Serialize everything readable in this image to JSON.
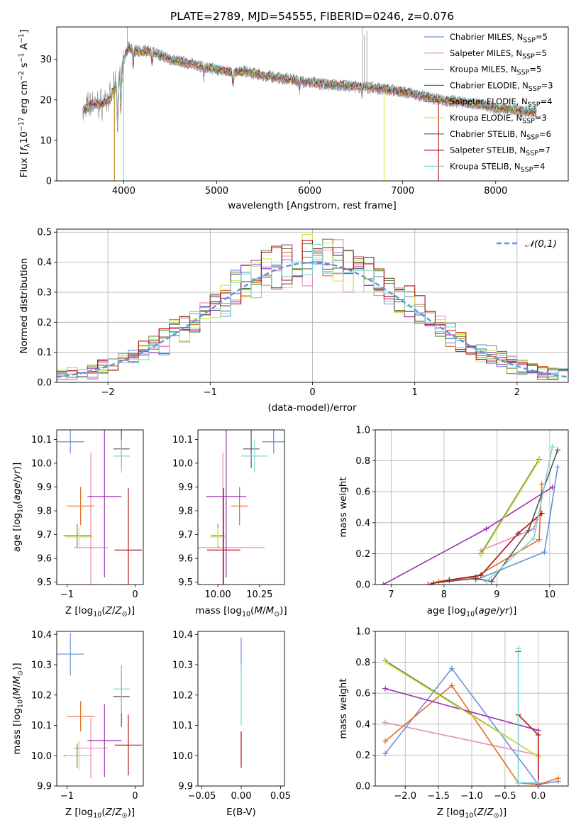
{
  "figure": {
    "title": "PLATE=2789, MJD=54555, FIBERID=0246, z=0.076"
  },
  "chart_data": [
    {
      "id": "spectrum",
      "type": "line",
      "xlabel": "wavelength [Angstrom, rest frame]",
      "ylabel": "Flux [f_λ10^-17 erg cm^-2 s^-1 A^-1]",
      "xlim": [
        3280,
        8780
      ],
      "ylim": [
        0,
        38
      ],
      "xticks": [
        4000,
        5000,
        6000,
        7000,
        8000
      ],
      "yticks": [
        0,
        10,
        20,
        30
      ],
      "grid": false,
      "legend_position": "right",
      "series": [
        {
          "name": "Chabrier MILES, N_SSP=5",
          "color": "#6a8fd8"
        },
        {
          "name": "Salpeter MILES, N_SSP=5",
          "color": "#e38bbf"
        },
        {
          "name": "Kroupa MILES, N_SSP=5",
          "color": "#b8860b"
        },
        {
          "name": "Chabrier ELODIE, N_SSP=3",
          "color": "#5f8a3a"
        },
        {
          "name": "Salpeter ELODIE, N_SSP=4",
          "color": "#9c32b0"
        },
        {
          "name": "Kroupa ELODIE, N_SSP=3",
          "color": "#d4e84a"
        },
        {
          "name": "Chabrier STELIB, N_SSP=6",
          "color": "#555555"
        },
        {
          "name": "Salpeter STELIB, N_SSP=7",
          "color": "#b01010"
        },
        {
          "name": "Kroupa STELIB, N_SSP=4",
          "color": "#7fd6d6"
        }
      ],
      "data_color": "#808080",
      "continuum_points": [
        [
          3550,
          17
        ],
        [
          3650,
          19
        ],
        [
          3750,
          19
        ],
        [
          3850,
          20
        ],
        [
          3950,
          26
        ],
        [
          4000,
          30
        ],
        [
          4050,
          33
        ],
        [
          4150,
          32
        ],
        [
          4300,
          32
        ],
        [
          4400,
          31
        ],
        [
          4500,
          30
        ],
        [
          4700,
          29
        ],
        [
          4900,
          28
        ],
        [
          5100,
          27
        ],
        [
          5300,
          27
        ],
        [
          5500,
          26
        ],
        [
          5800,
          25
        ],
        [
          6100,
          24
        ],
        [
          6400,
          23.5
        ],
        [
          6700,
          23
        ],
        [
          7000,
          22
        ],
        [
          7200,
          21
        ],
        [
          7400,
          20
        ],
        [
          7600,
          19.5
        ],
        [
          7800,
          19
        ],
        [
          8000,
          18
        ],
        [
          8200,
          17.5
        ],
        [
          8400,
          17
        ]
      ]
    },
    {
      "id": "residuals",
      "type": "histogram",
      "xlabel": "(data-model)/error",
      "ylabel": "Normed distribution",
      "xlim": [
        -2.5,
        2.5
      ],
      "ylim": [
        0,
        0.51
      ],
      "xticks": [
        -2,
        -1,
        0,
        1,
        2
      ],
      "yticks": [
        0.0,
        0.1,
        0.2,
        0.3,
        0.4,
        0.5
      ],
      "grid": true,
      "legend_position": "top-right",
      "reference_curve": {
        "label": "𝒩(0,1)",
        "color": "#5a9ad8",
        "style": "dashed"
      },
      "bin_width": 0.1
    },
    {
      "id": "age_vs_Z",
      "type": "errorbar",
      "xlabel": "Z [log10(Z/Z⊙)]",
      "ylabel": "age [log10(age/yr)]",
      "xlim": [
        -1.15,
        0.12
      ],
      "ylim": [
        9.49,
        10.14
      ],
      "xticks": [
        -1,
        0
      ],
      "yticks": [
        9.5,
        9.6,
        9.7,
        9.8,
        9.9,
        10.0,
        10.1
      ],
      "points": [
        {
          "x": -0.95,
          "xerr": 0.2,
          "y": 10.09,
          "yerr": 0.05,
          "color": "#6a8fd8"
        },
        {
          "x": -0.65,
          "xerr": 0.25,
          "y": 9.645,
          "yerr": 0.4,
          "color": "#e38bbf"
        },
        {
          "x": -0.8,
          "xerr": 0.2,
          "y": 9.82,
          "yerr": 0.08,
          "color": "#e07020"
        },
        {
          "x": -0.85,
          "xerr": 0.2,
          "y": 9.695,
          "yerr": 0.05,
          "color": "#5f8a3a"
        },
        {
          "x": -0.45,
          "xerr": 0.25,
          "y": 9.86,
          "yerr": 0.34,
          "color": "#9c32b0"
        },
        {
          "x": -0.82,
          "xerr": 0.2,
          "y": 9.69,
          "yerr": 0.04,
          "color": "#d4e84a"
        },
        {
          "x": -0.2,
          "xerr": 0.12,
          "y": 10.06,
          "yerr": 0.08,
          "color": "#555555"
        },
        {
          "x": -0.1,
          "xerr": 0.2,
          "y": 9.635,
          "yerr": 0.26,
          "color": "#b01010"
        },
        {
          "x": -0.2,
          "xerr": 0.12,
          "y": 10.03,
          "yerr": 0.07,
          "color": "#7fd6d6"
        }
      ]
    },
    {
      "id": "age_vs_mass",
      "type": "errorbar",
      "xlabel": "mass [log10(M/M⊙)]",
      "ylabel": "",
      "xlim": [
        9.88,
        10.4
      ],
      "ylim": [
        9.49,
        10.14
      ],
      "xticks": [
        10.0,
        10.25
      ],
      "yticks": [
        9.5,
        9.6,
        9.7,
        9.8,
        9.9,
        10.0,
        10.1
      ],
      "points": [
        {
          "x": 10.335,
          "xerr": 0.07,
          "y": 10.09,
          "yerr": 0.05,
          "color": "#6a8fd8"
        },
        {
          "x": 10.03,
          "xerr": 0.25,
          "y": 9.645,
          "yerr": 0.4,
          "color": "#e38bbf"
        },
        {
          "x": 10.13,
          "xerr": 0.05,
          "y": 9.82,
          "yerr": 0.08,
          "color": "#e07020"
        },
        {
          "x": 10.0,
          "xerr": 0.04,
          "y": 9.695,
          "yerr": 0.05,
          "color": "#5f8a3a"
        },
        {
          "x": 10.05,
          "xerr": 0.12,
          "y": 9.86,
          "yerr": 0.34,
          "color": "#9c32b0"
        },
        {
          "x": 10.0,
          "xerr": 0.05,
          "y": 9.69,
          "yerr": 0.04,
          "color": "#d4e84a"
        },
        {
          "x": 10.2,
          "xerr": 0.05,
          "y": 10.06,
          "yerr": 0.08,
          "color": "#555555"
        },
        {
          "x": 10.035,
          "xerr": 0.1,
          "y": 9.635,
          "yerr": 0.26,
          "color": "#b01010"
        },
        {
          "x": 10.22,
          "xerr": 0.08,
          "y": 10.03,
          "yerr": 0.07,
          "color": "#7fd6d6"
        }
      ]
    },
    {
      "id": "weight_vs_age",
      "type": "line",
      "xlabel": "age [log10(age/yr)]",
      "ylabel": "mass weight",
      "xlim": [
        6.7,
        10.35
      ],
      "ylim": [
        0,
        1.0
      ],
      "xticks": [
        7,
        8,
        9,
        10
      ],
      "yticks": [
        0.0,
        0.2,
        0.4,
        0.6,
        0.8,
        1.0
      ],
      "grid": true,
      "series": [
        {
          "color": "#6a8fd8",
          "x": [
            8.6,
            9.9,
            10.15
          ],
          "y": [
            0.03,
            0.21,
            0.76
          ]
        },
        {
          "color": "#e38bbf",
          "x": [
            8.7,
            9.7,
            9.75
          ],
          "y": [
            0.22,
            0.36,
            0.42
          ]
        },
        {
          "color": "#e07020",
          "x": [
            7.9,
            8.6,
            9.8,
            9.85
          ],
          "y": [
            0.02,
            0.05,
            0.29,
            0.65
          ]
        },
        {
          "color": "#5f8a3a",
          "x": [
            8.7,
            9.8
          ],
          "y": [
            0.2,
            0.81
          ]
        },
        {
          "color": "#9c32b0",
          "x": [
            6.85,
            8.8,
            10.05
          ],
          "y": [
            0.0,
            0.36,
            0.63
          ]
        },
        {
          "color": "#d4e84a",
          "x": [
            8.7,
            9.8
          ],
          "y": [
            0.19,
            0.8
          ]
        },
        {
          "color": "#555555",
          "x": [
            7.8,
            8.6,
            8.9,
            9.6,
            10.15
          ],
          "y": [
            0.01,
            0.04,
            0.02,
            0.35,
            0.87
          ]
        },
        {
          "color": "#b01010",
          "x": [
            7.7,
            8.1,
            8.7,
            9.4,
            9.85
          ],
          "y": [
            0.0,
            0.03,
            0.06,
            0.33,
            0.46
          ]
        },
        {
          "color": "#7fd6d6",
          "x": [
            8.8,
            9.7,
            10.05
          ],
          "y": [
            0.02,
            0.3,
            0.89
          ]
        }
      ]
    },
    {
      "id": "mass_vs_Z",
      "type": "errorbar",
      "xlabel": "Z [log10(Z/Z⊙)]",
      "ylabel": "mass [log10(M/M⊙)]",
      "xlim": [
        -1.15,
        0.12
      ],
      "ylim": [
        9.9,
        10.41
      ],
      "xticks": [
        -1,
        0
      ],
      "yticks": [
        9.9,
        10.0,
        10.1,
        10.2,
        10.3,
        10.4
      ],
      "points": [
        {
          "x": -0.95,
          "xerr": 0.2,
          "y": 10.335,
          "yerr": 0.07,
          "color": "#6a8fd8"
        },
        {
          "x": -0.65,
          "xerr": 0.25,
          "y": 10.025,
          "yerr": 0.1,
          "color": "#e38bbf"
        },
        {
          "x": -0.8,
          "xerr": 0.2,
          "y": 10.13,
          "yerr": 0.05,
          "color": "#e07020"
        },
        {
          "x": -0.85,
          "xerr": 0.2,
          "y": 10.0,
          "yerr": 0.04,
          "color": "#5f8a3a"
        },
        {
          "x": -0.45,
          "xerr": 0.25,
          "y": 10.05,
          "yerr": 0.12,
          "color": "#9c32b0"
        },
        {
          "x": -0.82,
          "xerr": 0.2,
          "y": 10.0,
          "yerr": 0.05,
          "color": "#d4e84a"
        },
        {
          "x": -0.2,
          "xerr": 0.12,
          "y": 10.195,
          "yerr": 0.1,
          "color": "#555555"
        },
        {
          "x": -0.1,
          "xerr": 0.2,
          "y": 10.035,
          "yerr": 0.1,
          "color": "#b01010"
        },
        {
          "x": -0.2,
          "xerr": 0.12,
          "y": 10.22,
          "yerr": 0.08,
          "color": "#7fd6d6"
        }
      ]
    },
    {
      "id": "mass_vs_EBV",
      "type": "errorbar",
      "xlabel": "E(B-V)",
      "ylabel": "",
      "xlim": [
        -0.055,
        0.055
      ],
      "ylim": [
        9.9,
        10.41
      ],
      "xticks": [
        -0.05,
        0.0,
        0.05
      ],
      "yticks": [
        9.9,
        10.0,
        10.1,
        10.2,
        10.3,
        10.4
      ],
      "points": [
        {
          "x": 0.0,
          "y": 10.33,
          "yerr": 0.06,
          "color": "#6a8fd8"
        },
        {
          "x": 0.0,
          "y": 10.2,
          "yerr": 0.1,
          "color": "#7fd6d6"
        },
        {
          "x": 0.0,
          "y": 10.02,
          "yerr": 0.06,
          "color": "#b01010"
        }
      ]
    },
    {
      "id": "weight_vs_Z",
      "type": "line",
      "xlabel": "Z [log10(Z/Z⊙)]",
      "ylabel": "mass weight",
      "xlim": [
        -2.45,
        0.45
      ],
      "ylim": [
        0,
        1.0
      ],
      "xticks": [
        -2.0,
        -1.5,
        -1.0,
        -0.5,
        0.0
      ],
      "yticks": [
        0.0,
        0.2,
        0.4,
        0.6,
        0.8,
        1.0
      ],
      "grid": true,
      "series": [
        {
          "color": "#6a8fd8",
          "x": [
            -2.3,
            -1.3,
            0.0,
            0.3
          ],
          "y": [
            0.21,
            0.76,
            0.01,
            0.03
          ]
        },
        {
          "color": "#e38bbf",
          "x": [
            -2.3,
            0.0
          ],
          "y": [
            0.41,
            0.2
          ]
        },
        {
          "color": "#e07020",
          "x": [
            -2.3,
            -1.3,
            -0.3,
            0.0,
            0.3
          ],
          "y": [
            0.29,
            0.65,
            0.02,
            0.01,
            0.05
          ]
        },
        {
          "color": "#5f8a3a",
          "x": [
            -2.3,
            0.0
          ],
          "y": [
            0.81,
            0.19
          ]
        },
        {
          "color": "#9c32b0",
          "x": [
            -2.3,
            0.0
          ],
          "y": [
            0.63,
            0.36
          ]
        },
        {
          "color": "#d4e84a",
          "x": [
            -2.3,
            0.0
          ],
          "y": [
            0.8,
            0.19
          ]
        },
        {
          "color": "#555555",
          "x": [
            -0.3,
            -0.3,
            0.0
          ],
          "y": [
            0.87,
            0.02,
            0.02
          ]
        },
        {
          "color": "#b01010",
          "x": [
            -0.3,
            0.0,
            0.0
          ],
          "y": [
            0.46,
            0.33,
            0.01
          ]
        },
        {
          "color": "#7fd6d6",
          "x": [
            -0.3,
            -0.3,
            0.0
          ],
          "y": [
            0.89,
            0.02,
            0.02
          ]
        }
      ]
    }
  ]
}
